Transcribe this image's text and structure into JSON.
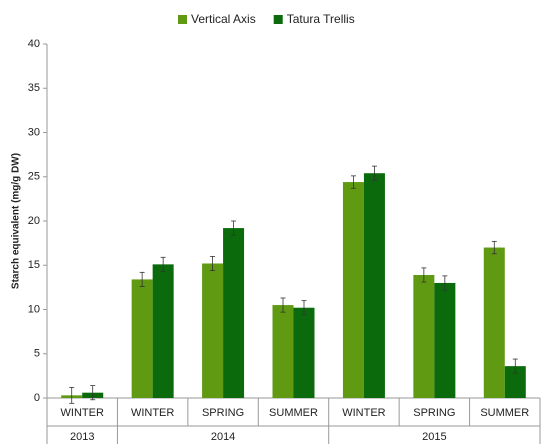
{
  "chart_data": {
    "type": "bar",
    "ylabel": "Starch equivalent (mg/g DW)",
    "groups": [
      {
        "name": "2013",
        "categories": [
          "WINTER"
        ]
      },
      {
        "name": "2014",
        "categories": [
          "WINTER",
          "SPRING",
          "SUMMER"
        ]
      },
      {
        "name": "2015",
        "categories": [
          "WINTER",
          "SPRING",
          "SUMMER"
        ]
      }
    ],
    "series": [
      {
        "name": "Vertical Axis",
        "color": "#5f9a12",
        "values": [
          0.3,
          13.4,
          15.2,
          10.5,
          24.4,
          13.9,
          17.0
        ],
        "errors": [
          0.9,
          0.8,
          0.8,
          0.8,
          0.7,
          0.8,
          0.7
        ]
      },
      {
        "name": "Tatura Trellis",
        "color": "#0b6a0b",
        "values": [
          0.6,
          15.1,
          19.2,
          10.2,
          25.4,
          13.0,
          3.6
        ],
        "errors": [
          0.8,
          0.8,
          0.8,
          0.8,
          0.8,
          0.8,
          0.8
        ]
      }
    ],
    "ylim": [
      0,
      40
    ],
    "yticks": [
      0,
      5,
      10,
      15,
      20,
      25,
      30,
      35,
      40
    ],
    "grid": false
  }
}
